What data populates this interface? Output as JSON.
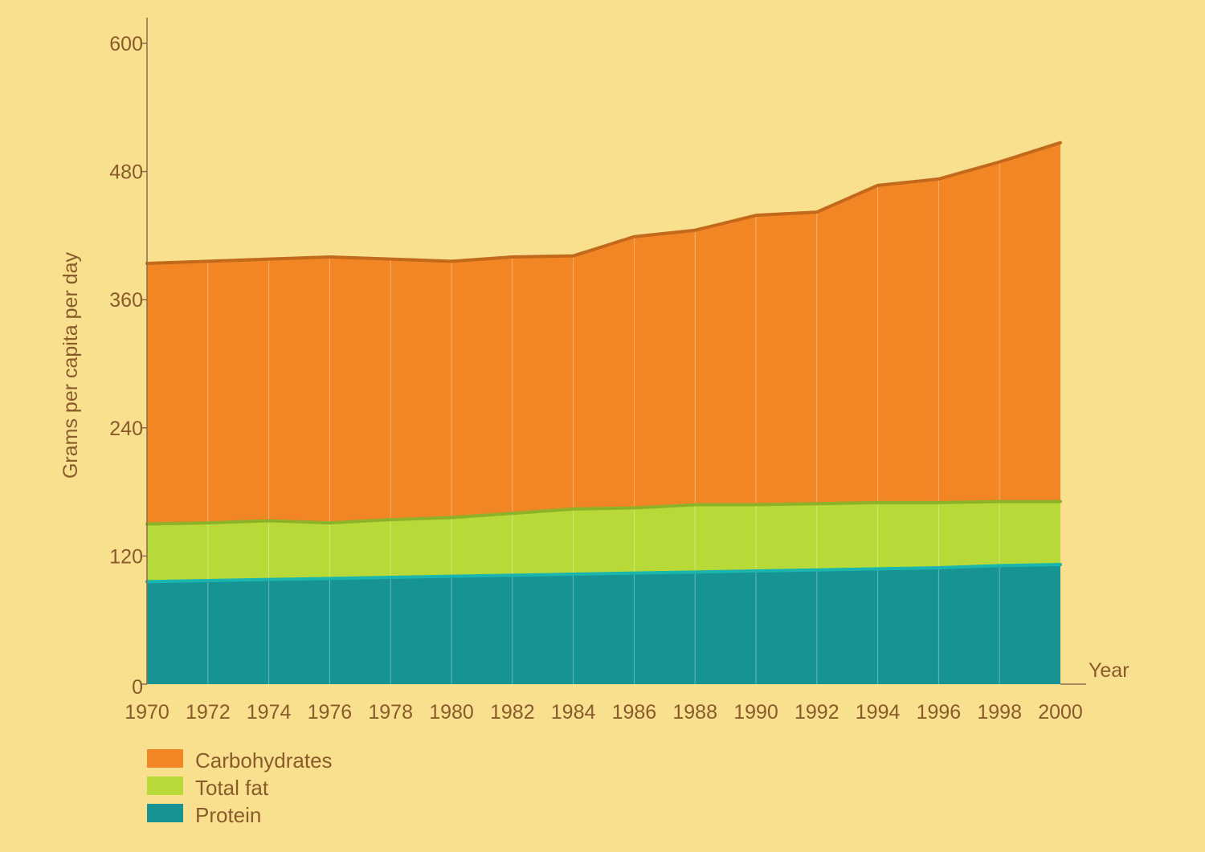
{
  "chart_data": {
    "type": "area",
    "stacked": true,
    "title": "",
    "xlabel": "Year",
    "ylabel": "Grams per capita per day",
    "ylim": [
      0,
      600
    ],
    "yticks": [
      0,
      120,
      240,
      360,
      480,
      600
    ],
    "grid": false,
    "legend_position": "bottom-left",
    "x": [
      "1970",
      "1972",
      "1974",
      "1976",
      "1978",
      "1980",
      "1982",
      "1984",
      "1986",
      "1988",
      "1990",
      "1992",
      "1994",
      "1996",
      "1998",
      "2000"
    ],
    "series": [
      {
        "name": "Protein",
        "fill": "#179393",
        "line": "#1BB5B0",
        "values": [
          96,
          97,
          98,
          99,
          100,
          101,
          102,
          103,
          104,
          105,
          106,
          107,
          108,
          109,
          111,
          112
        ]
      },
      {
        "name": "Total fat",
        "fill": "#B8DA38",
        "line": "#8DB22A",
        "values": [
          54,
          54,
          55,
          52,
          54,
          55,
          58,
          61,
          61,
          63,
          62,
          62,
          62,
          61,
          60,
          59
        ]
      },
      {
        "name": "Carbohydrates",
        "fill": "#F28625",
        "line": "#C2691B",
        "values": [
          244,
          245,
          245,
          249,
          244,
          240,
          240,
          237,
          254,
          257,
          271,
          273,
          297,
          303,
          318,
          336
        ]
      }
    ],
    "legend_order": [
      "Carbohydrates",
      "Total fat",
      "Protein"
    ]
  }
}
